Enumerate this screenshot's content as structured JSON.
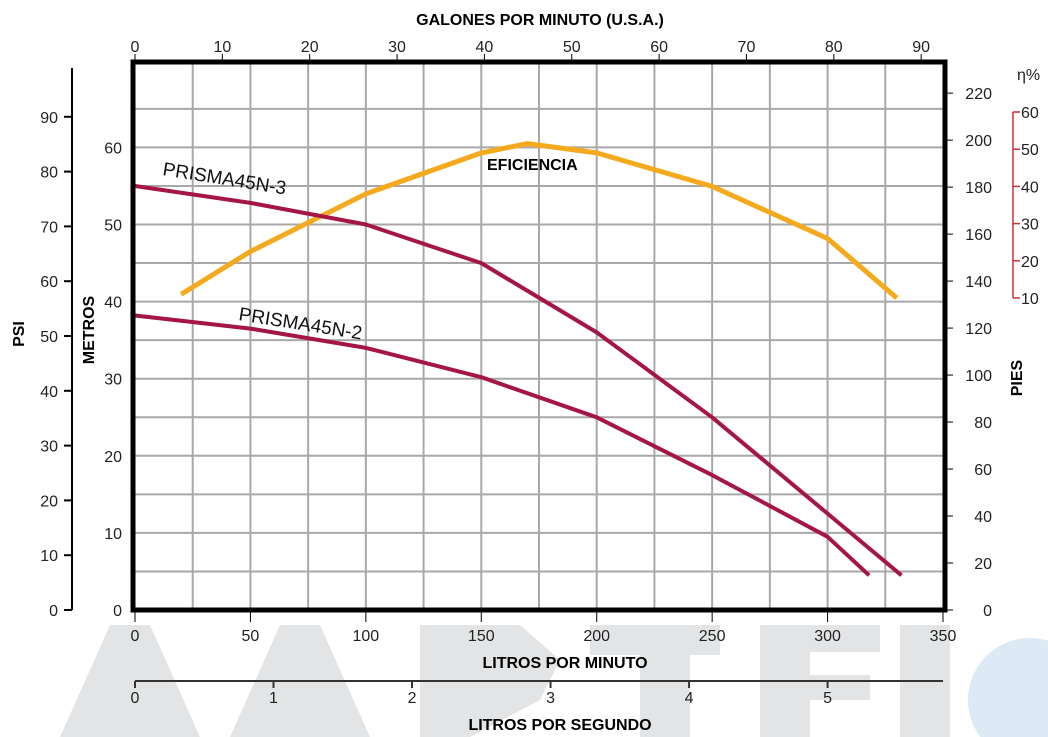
{
  "chart_data": {
    "type": "line",
    "axes": {
      "top": {
        "title": "GALONES POR MINUTO (U.S.A.)",
        "ticks": [
          "0",
          "10",
          "20",
          "30",
          "40",
          "50",
          "60",
          "70",
          "80",
          "90"
        ],
        "range": [
          0,
          92.5
        ]
      },
      "bottom": {
        "title": "LITROS POR MINUTO",
        "ticks": [
          "0",
          "50",
          "100",
          "150",
          "200",
          "250",
          "300",
          "350"
        ],
        "range": [
          0,
          350
        ]
      },
      "bottom2": {
        "title": "LITROS POR SEGUNDO",
        "ticks": [
          "0",
          "1",
          "2",
          "3",
          "4",
          "5"
        ],
        "range": [
          0,
          5.83
        ]
      },
      "left_outer": {
        "title": "PSI",
        "ticks": [
          "0",
          "10",
          "20",
          "30",
          "40",
          "50",
          "60",
          "70",
          "80",
          "90"
        ],
        "range": [
          0,
          100
        ]
      },
      "left_inner": {
        "title": "METROS",
        "ticks": [
          "0",
          "10",
          "20",
          "30",
          "40",
          "50",
          "60"
        ],
        "range": [
          0,
          70.3
        ]
      },
      "right_inner": {
        "title": "PIES",
        "ticks": [
          "0",
          "20",
          "40",
          "60",
          "80",
          "100",
          "120",
          "140",
          "160",
          "180",
          "200",
          "220"
        ],
        "range": [
          0,
          230.7
        ]
      },
      "right_outer": {
        "title": "η%",
        "ticks": [
          "10",
          "20",
          "30",
          "40",
          "50",
          "60"
        ],
        "range": [
          10,
          60
        ]
      }
    },
    "grid": true,
    "series": [
      {
        "name": "PRISMA45N-3",
        "color": "#a51545",
        "x_lpm": [
          0,
          50,
          100,
          150,
          200,
          250,
          300,
          332
        ],
        "y_m": [
          55.0,
          52.8,
          50.0,
          45.0,
          36.0,
          25.0,
          12.5,
          4.5
        ]
      },
      {
        "name": "PRISMA45N-2",
        "color": "#a51545",
        "x_lpm": [
          0,
          50,
          100,
          150,
          200,
          250,
          300,
          318
        ],
        "y_m": [
          38.2,
          36.5,
          34.0,
          30.2,
          25.0,
          17.5,
          9.5,
          4.5
        ]
      }
    ],
    "efficiency": {
      "label": "EFICIENCIA",
      "color": "#f5aa1e",
      "x_lpm": [
        20,
        50,
        100,
        150,
        170,
        200,
        250,
        300,
        330
      ],
      "eta": [
        11,
        22.5,
        38,
        49,
        51.5,
        49,
        40,
        26,
        10
      ]
    }
  }
}
